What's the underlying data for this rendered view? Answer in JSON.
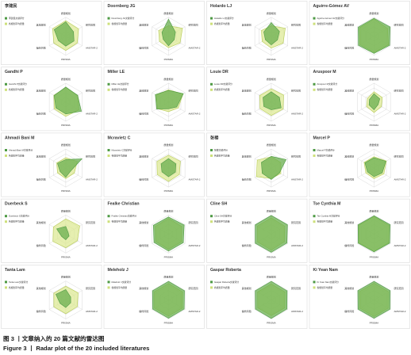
{
  "figure": {
    "caption_cn": "图 3 丨文章纳入的 20 篇文献的雷达图",
    "caption_en": "Figure 3 丨 Radar plot of the 20 included literatures"
  },
  "colors": {
    "study_series": "#4e9a44",
    "avg_series": "#cde07a",
    "study_fill": "#6aaf4f",
    "avg_fill": "#dbe88f"
  },
  "chart_data": [
    {
      "type": "radar",
      "title": "李建民",
      "axes": [
        "质量规划",
        "研究范围",
        "AMSTAR-2",
        "PRISMA",
        "偏倚风险",
        "其他规划"
      ],
      "series": [
        {
          "name": "李建民文献评分",
          "values": [
            0.76,
            0.47,
            0.5,
            0.52,
            0.45,
            0.7
          ]
        },
        {
          "name": "各规划平均质量",
          "values": [
            0.82,
            0.78,
            0.7,
            0.75,
            0.72,
            0.8
          ]
        }
      ],
      "ylim": [
        0,
        1
      ]
    },
    {
      "type": "radar",
      "title": "Doornberg JG",
      "axes": [
        "质量规划",
        "研究范围",
        "AMSTAR-2",
        "PRISMA",
        "偏倚风险",
        "其他规划"
      ],
      "series": [
        {
          "name": "Doornberg JG文献评分",
          "values": [
            0.9,
            0.42,
            0.35,
            0.5,
            0.32,
            0.4
          ]
        },
        {
          "name": "各规划平均质量",
          "values": [
            0.55,
            0.85,
            0.7,
            0.6,
            0.55,
            0.6
          ]
        }
      ],
      "ylim": [
        0,
        1
      ]
    },
    {
      "type": "radar",
      "title": "Holardo LJ",
      "axes": [
        "质量规划",
        "研究范围",
        "AMSTAR-2",
        "PRISMA",
        "偏倚风险",
        "其他规划"
      ],
      "series": [
        {
          "name": "Holardo LJ文献评分",
          "values": [
            0.72,
            0.5,
            0.38,
            0.45,
            0.36,
            0.45
          ]
        },
        {
          "name": "各规划平均质量",
          "values": [
            0.55,
            0.85,
            0.72,
            0.62,
            0.55,
            0.6
          ]
        }
      ],
      "ylim": [
        0,
        1
      ]
    },
    {
      "type": "radar",
      "title": "Aguirre-Gómez AV",
      "axes": [
        "质量规划",
        "研究范围",
        "AMSTAR-2",
        "PRISMA",
        "偏倚风险",
        "其他规划"
      ],
      "series": [
        {
          "name": "Aguirre-Gómez AV文献评分",
          "values": [
            0.95,
            0.98,
            0.95,
            0.9,
            0.95,
            0.96
          ]
        },
        {
          "name": "各规划平均质量",
          "values": [
            0.9,
            0.82,
            0.88,
            0.85,
            0.86,
            0.88
          ]
        }
      ],
      "ylim": [
        0,
        1
      ]
    },
    {
      "type": "radar",
      "title": "Gandhi P",
      "axes": [
        "质量规划",
        "研究范围",
        "AMSTAR-2",
        "PRISMA",
        "偏倚风险",
        "其他规划"
      ],
      "series": [
        {
          "name": "Gandhi P文献评分",
          "values": [
            0.8,
            0.72,
            0.95,
            0.62,
            0.6,
            0.7
          ]
        },
        {
          "name": "各规划平均质量",
          "values": [
            0.78,
            0.72,
            0.8,
            0.75,
            0.7,
            0.72
          ]
        }
      ],
      "ylim": [
        0,
        1
      ]
    },
    {
      "type": "radar",
      "title": "Miller LE",
      "axes": [
        "质量规划",
        "研究范围",
        "AMSTAR-2",
        "PRISMA",
        "偏倚风险",
        "其他规划"
      ],
      "series": [
        {
          "name": "Miller LE文献评分",
          "values": [
            0.62,
            0.9,
            0.5,
            0.35,
            0.72,
            0.8
          ]
        },
        {
          "name": "各规划平均质量",
          "values": [
            0.65,
            0.88,
            0.6,
            0.5,
            0.68,
            0.75
          ]
        }
      ],
      "ylim": [
        0,
        1
      ]
    },
    {
      "type": "radar",
      "title": "Louie DR",
      "axes": [
        "质量规划",
        "研究范围",
        "AMSTAR-2",
        "PRISMA",
        "偏倚风险",
        "其他规划"
      ],
      "series": [
        {
          "name": "Louie DR文献评分",
          "values": [
            0.55,
            0.5,
            0.6,
            0.4,
            0.45,
            0.5
          ]
        },
        {
          "name": "各规划平均质量",
          "values": [
            0.7,
            0.75,
            0.72,
            0.7,
            0.68,
            0.7
          ]
        }
      ],
      "ylim": [
        0,
        1
      ]
    },
    {
      "type": "radar",
      "title": "Aruspoor M",
      "axes": [
        "质量规划",
        "研究范围",
        "AMSTAR-2",
        "PRISMA",
        "偏倚风险",
        "其他规划"
      ],
      "series": [
        {
          "name": "Aruspoor M文献评分",
          "values": [
            0.45,
            0.35,
            0.25,
            0.4,
            0.3,
            0.28
          ]
        },
        {
          "name": "各规划平均质量",
          "values": [
            0.55,
            0.5,
            0.45,
            0.55,
            0.45,
            0.4
          ]
        }
      ],
      "ylim": [
        0,
        1
      ]
    },
    {
      "type": "radar",
      "title": "Ahmadi Bani M",
      "axes": [
        "质量规划",
        "研究范围",
        "AMSTAR-2",
        "PRISMA",
        "偏倚风险",
        "其他规划"
      ],
      "series": [
        {
          "name": "Ahmadi Bani M文献评分",
          "values": [
            0.45,
            0.98,
            0.3,
            0.48,
            0.35,
            0.5
          ]
        },
        {
          "name": "各规划平均质量",
          "values": [
            0.55,
            0.7,
            0.52,
            0.55,
            0.5,
            0.55
          ]
        }
      ],
      "ylim": [
        0,
        1
      ]
    },
    {
      "type": "radar",
      "title": "Mcravietz C",
      "axes": [
        "质量规划",
        "研究范围",
        "AMSTAR-2",
        "PRISMA",
        "偏倚风险",
        "其他规划"
      ],
      "series": [
        {
          "name": "Mcravietz C文献评分",
          "values": [
            0.5,
            0.45,
            0.42,
            0.45,
            0.4,
            0.45
          ]
        },
        {
          "name": "各规划平均质量",
          "values": [
            0.68,
            0.72,
            0.66,
            0.7,
            0.68,
            0.7
          ]
        }
      ],
      "ylim": [
        0,
        1
      ]
    },
    {
      "type": "radar",
      "title": "张楼",
      "axes": [
        "质量规划",
        "研究范围",
        "AMSTAR-2",
        "PRISMA",
        "偏倚风险",
        "其他规划"
      ],
      "series": [
        {
          "name": "张楼文献评分",
          "values": [
            0.62,
            0.9,
            0.5,
            0.6,
            0.55,
            0.6
          ]
        },
        {
          "name": "各规划平均质量",
          "values": [
            0.6,
            0.58,
            0.58,
            0.55,
            0.9,
            0.85
          ]
        }
      ],
      "ylim": [
        0,
        1
      ]
    },
    {
      "type": "radar",
      "title": "Marcel P",
      "axes": [
        "质量规划",
        "研究范围",
        "AMSTAR-2",
        "PRISMA",
        "偏倚风险",
        "其他规划"
      ],
      "series": [
        {
          "name": "Marcel P文献评分",
          "values": [
            0.55,
            0.72,
            0.5,
            0.45,
            0.4,
            0.55
          ]
        },
        {
          "name": "各规划平均质量",
          "values": [
            0.6,
            0.75,
            0.6,
            0.55,
            0.5,
            0.6
          ]
        }
      ],
      "ylim": [
        0,
        1
      ]
    },
    {
      "type": "radar",
      "title": "Duerbeck S",
      "axes": [
        "质量规划",
        "研究范围",
        "AMSTAR-2",
        "PRISMA",
        "偏倚风险",
        "其他规划"
      ],
      "series": [
        {
          "name": "Duerbeck S文献评分",
          "values": [
            0.4,
            0.15,
            0.2,
            0.3,
            0.25,
            0.55
          ]
        },
        {
          "name": "各规划平均质量",
          "values": [
            0.8,
            0.85,
            0.7,
            0.72,
            0.78,
            0.75
          ]
        }
      ],
      "ylim": [
        0,
        1
      ]
    },
    {
      "type": "radar",
      "title": "Fealke Christian",
      "axes": [
        "质量规划",
        "研究范围",
        "AMSTAR-2",
        "PRISMA",
        "偏倚风险",
        "其他规划"
      ],
      "series": [
        {
          "name": "Fealke Christian文献评分",
          "values": [
            0.9,
            0.95,
            0.9,
            0.9,
            0.88,
            0.92
          ]
        },
        {
          "name": "各规划平均质量",
          "values": [
            0.82,
            0.8,
            0.8,
            0.8,
            0.78,
            0.8
          ]
        }
      ],
      "ylim": [
        0,
        1
      ]
    },
    {
      "type": "radar",
      "title": "Cline SH",
      "axes": [
        "质量规划",
        "研究范围",
        "AMSTAR-2",
        "PRISMA",
        "偏倚风险",
        "其他规划"
      ],
      "series": [
        {
          "name": "Cline SH文献评分",
          "values": [
            0.98,
            0.98,
            0.95,
            0.96,
            0.97,
            0.97
          ]
        },
        {
          "name": "各规划平均质量",
          "values": [
            0.85,
            0.82,
            0.8,
            0.84,
            0.83,
            0.84
          ]
        }
      ],
      "ylim": [
        0,
        1
      ]
    },
    {
      "type": "radar",
      "title": "Tse Cynthia M",
      "axes": [
        "质量规划",
        "研究范围",
        "AMSTAR-2",
        "PRISMA",
        "偏倚风险",
        "其他规划"
      ],
      "series": [
        {
          "name": "Tse Cynthia M文献评分",
          "values": [
            0.96,
            0.98,
            0.95,
            0.94,
            0.96,
            0.97
          ]
        },
        {
          "name": "各规划平均质量",
          "values": [
            0.92,
            0.9,
            0.9,
            0.9,
            0.92,
            0.92
          ]
        }
      ],
      "ylim": [
        0,
        1
      ]
    },
    {
      "type": "radar",
      "title": "Tanta Lam",
      "axes": [
        "质量规划",
        "研究范围",
        "AMSTAR-2",
        "PRISMA",
        "偏倚风险",
        "其他规划"
      ],
      "series": [
        {
          "name": "Tanta Lam文献评分",
          "values": [
            0.55,
            0.3,
            0.3,
            0.4,
            0.35,
            0.6
          ]
        },
        {
          "name": "各规划平均质量",
          "values": [
            0.72,
            0.75,
            0.7,
            0.72,
            0.72,
            0.72
          ]
        }
      ],
      "ylim": [
        0,
        1
      ]
    },
    {
      "type": "radar",
      "title": "Meleholz J",
      "axes": [
        "质量规划",
        "研究范围",
        "AMSTAR-2",
        "PRISMA",
        "偏倚风险",
        "其他规划"
      ],
      "series": [
        {
          "name": "Meleholz J文献评分",
          "values": [
            0.98,
            0.97,
            0.95,
            0.96,
            0.96,
            0.97
          ]
        },
        {
          "name": "各规划平均质量",
          "values": [
            0.86,
            0.85,
            0.84,
            0.84,
            0.85,
            0.86
          ]
        }
      ],
      "ylim": [
        0,
        1
      ]
    },
    {
      "type": "radar",
      "title": "Gaspar Roberta",
      "axes": [
        "质量规划",
        "研究范围",
        "AMSTAR-2",
        "PRISMA",
        "偏倚风险",
        "其他规划"
      ],
      "series": [
        {
          "name": "Gaspar Roberta文献评分",
          "values": [
            0.98,
            0.96,
            0.95,
            0.97,
            0.96,
            0.97
          ]
        },
        {
          "name": "各规划平均质量",
          "values": [
            0.84,
            0.83,
            0.82,
            0.82,
            0.82,
            0.83
          ]
        }
      ],
      "ylim": [
        0,
        1
      ]
    },
    {
      "type": "radar",
      "title": "Ki Yean Nam",
      "axes": [
        "质量规划",
        "研究范围",
        "AMSTAR-2",
        "PRISMA",
        "偏倚风险",
        "其他规划"
      ],
      "series": [
        {
          "name": "Ki Yean Nam文献评分",
          "values": [
            0.98,
            0.98,
            0.97,
            0.96,
            0.97,
            0.98
          ]
        },
        {
          "name": "各规划平均质量",
          "values": [
            0.88,
            0.87,
            0.86,
            0.87,
            0.86,
            0.88
          ]
        }
      ],
      "ylim": [
        0,
        1
      ]
    }
  ]
}
